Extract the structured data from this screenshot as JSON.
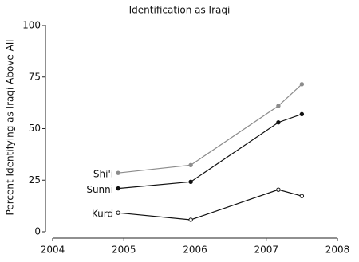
{
  "chart_data": {
    "type": "line",
    "title": "Identification as Iraqi",
    "y_label": "Percent Identifying as Iraqi Above All",
    "x": [
      2004.92,
      2005.94,
      2007.17,
      2007.5
    ],
    "series": [
      {
        "name": "Shi'i",
        "color": "#8c8c8c",
        "marker": "filled",
        "values": [
          28.5,
          32.3,
          61,
          71.5
        ]
      },
      {
        "name": "Sunni",
        "color": "#111111",
        "marker": "filled",
        "values": [
          21,
          24.2,
          53,
          57
        ]
      },
      {
        "name": "Kurd",
        "color": "#111111",
        "marker": "open",
        "values": [
          9.2,
          5.8,
          20.4,
          17.3
        ]
      }
    ],
    "xlim": [
      2004,
      2008
    ],
    "xticks": [
      2004,
      2005,
      2006,
      2007,
      2008
    ],
    "ylim": [
      0,
      100
    ],
    "yticks": [
      0,
      25,
      50,
      75,
      100
    ]
  }
}
